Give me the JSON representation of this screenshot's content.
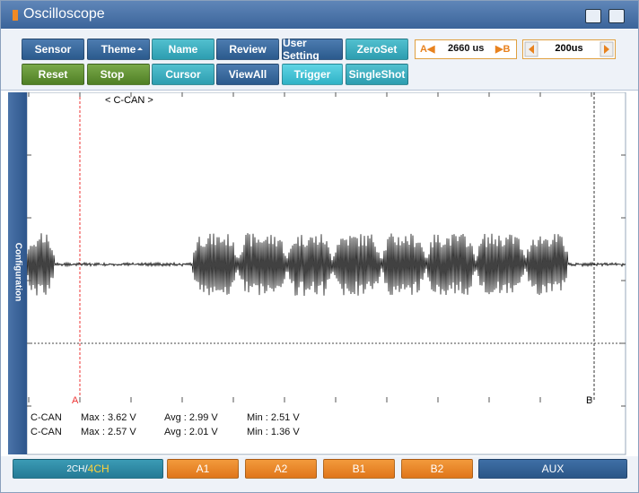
{
  "window": {
    "title": "Oscilloscope"
  },
  "toolbar": {
    "rows": [
      [
        "Sensor",
        "Theme",
        "Name",
        "Review",
        "User Setting",
        "ZeroSet"
      ],
      [
        "Reset",
        "Stop",
        "Cursor",
        "ViewAll",
        "Trigger",
        "SingleShot"
      ]
    ],
    "cursor_a": "A◀",
    "cursor_span": "2660 us",
    "cursor_b": "▶B",
    "timebase": "200us"
  },
  "side_panel": "Configuration",
  "scope": {
    "channel_label": "< C-CAN >",
    "cursor_a": "A",
    "cursor_b": "B",
    "measurements": [
      [
        "C-CAN",
        "Max : 3.62 V",
        "Avg : 2.99 V",
        "Min : 2.51 V"
      ],
      [
        "C-CAN",
        "Max : 2.57 V",
        "Avg : 2.01 V",
        "Min : 1.36 V"
      ]
    ]
  },
  "footer": {
    "channel_mode": "2CH",
    "channel_separator": "/",
    "channel_selected": "4CH",
    "buttons": [
      "A1",
      "A2",
      "B1",
      "B2",
      "AUX"
    ]
  }
}
